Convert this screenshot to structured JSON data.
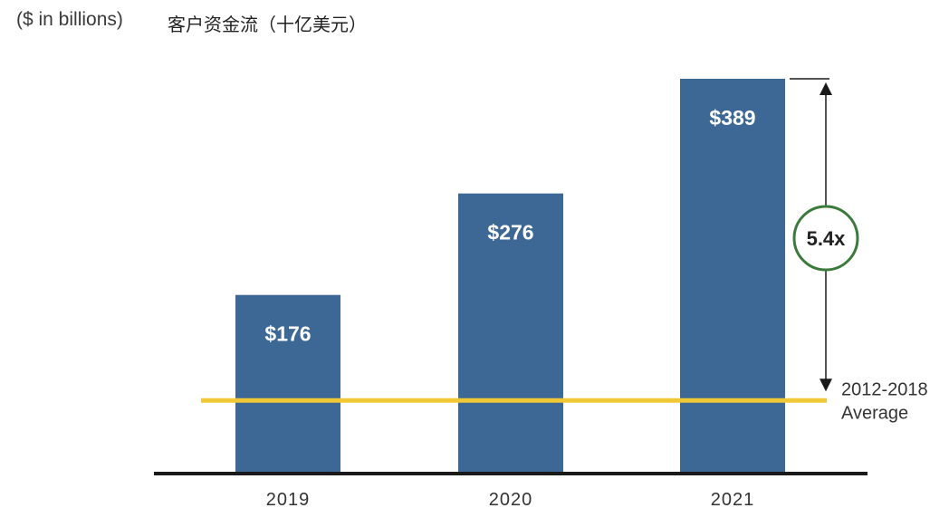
{
  "chart_data": {
    "type": "bar",
    "unit_label": "($ in billions)",
    "title": "客户资金流（十亿美元）",
    "categories": [
      "2019",
      "2020",
      "2021"
    ],
    "values": [
      176,
      276,
      389
    ],
    "data_labels": [
      "$176",
      "$276",
      "$389"
    ],
    "ylim": [
      0,
      389
    ],
    "grid": false,
    "reference_line": {
      "label_lines": [
        "2012-2018",
        "Average"
      ],
      "value": 72
    },
    "multiplier_annotation": {
      "label": "5.4x",
      "from_value": 72,
      "to_value": 389
    },
    "colors": {
      "bar": "#3d6794",
      "average_line": "#f0c835",
      "axis": "#1a1a1a",
      "annotation_circle": "#3a7a3a",
      "arrow": "#1a1a1a",
      "bar_label": "#ffffff",
      "text": "#333333"
    }
  }
}
